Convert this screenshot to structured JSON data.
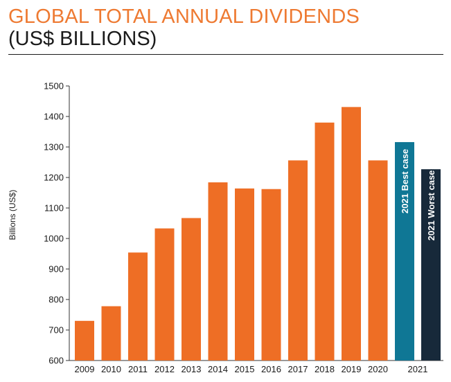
{
  "colors": {
    "title": "#ee7a32",
    "bar": "#ee6e25",
    "best_case": "#0f7795",
    "worst_case": "#17293a",
    "axis": "#333333"
  },
  "chart_data": {
    "type": "bar",
    "title": "GLOBAL TOTAL ANNUAL DIVIDENDS",
    "subtitle": "(US$ BILLIONS)",
    "xlabel": "",
    "ylabel": "Billions (US$)",
    "ylim": [
      600,
      1500
    ],
    "yticks": [
      600,
      700,
      800,
      900,
      1000,
      1100,
      1200,
      1300,
      1400,
      1500
    ],
    "categories": [
      "2009",
      "2010",
      "2011",
      "2012",
      "2013",
      "2014",
      "2015",
      "2016",
      "2017",
      "2018",
      "2019",
      "2020"
    ],
    "values": [
      730,
      778,
      954,
      1033,
      1067,
      1184,
      1164,
      1162,
      1256,
      1380,
      1431,
      1256
    ],
    "scenarios": {
      "group_label": "2021",
      "items": [
        {
          "name": "2021 Best case",
          "value": 1316,
          "color": "#0f7795"
        },
        {
          "name": "2021 Worst case",
          "value": 1227,
          "color": "#17293a"
        }
      ]
    },
    "grid": false,
    "legend": "none"
  }
}
